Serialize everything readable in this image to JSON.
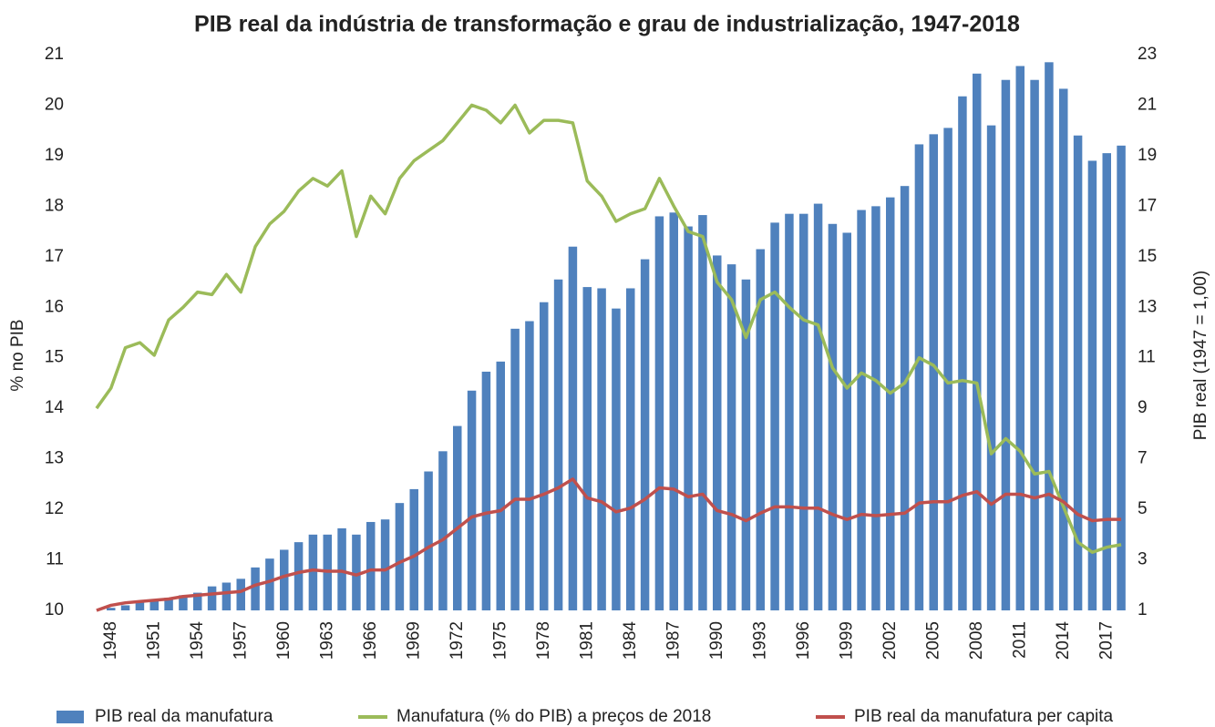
{
  "chart_data": {
    "type": "bar",
    "title": "PIB real da indústria de transformação e grau de industrialização, 1947-2018",
    "y_label": "%  no PIB",
    "y2_label": "PIB real (1947 = 1,00)",
    "categories": [
      null,
      "1948",
      null,
      null,
      "1951",
      null,
      null,
      "1954",
      null,
      null,
      "1957",
      null,
      null,
      "1960",
      null,
      null,
      "1963",
      null,
      null,
      "1966",
      null,
      null,
      "1969",
      null,
      null,
      "1972",
      null,
      null,
      "1975",
      null,
      null,
      "1978",
      null,
      null,
      "1981",
      null,
      null,
      "1984",
      null,
      null,
      "1987",
      null,
      null,
      "1990",
      null,
      null,
      "1993",
      null,
      null,
      "1996",
      null,
      null,
      "1999",
      null,
      null,
      "2002",
      null,
      null,
      "2005",
      null,
      null,
      "2008",
      null,
      null,
      "2011",
      null,
      null,
      "2014",
      null,
      null,
      "2017",
      null
    ],
    "ylim": [
      10,
      21
    ],
    "yticks": [
      10,
      11,
      12,
      13,
      14,
      15,
      16,
      17,
      18,
      19,
      20,
      21
    ],
    "y2lim": [
      1,
      23
    ],
    "y2ticks": [
      1,
      3,
      5,
      7,
      9,
      11,
      13,
      15,
      17,
      19,
      21,
      23
    ],
    "legend": "bottom",
    "series": [
      {
        "name": "PIB real da manufatura",
        "type": "bar",
        "axis": "y2",
        "color": "#4f81bd",
        "values": [
          1.0,
          1.1,
          1.2,
          1.35,
          1.45,
          1.5,
          1.6,
          1.7,
          1.95,
          2.1,
          2.25,
          2.7,
          3.05,
          3.4,
          3.7,
          4.0,
          4.0,
          4.25,
          4.0,
          4.5,
          4.6,
          5.25,
          5.8,
          6.5,
          7.3,
          8.3,
          9.7,
          10.45,
          10.85,
          12.15,
          12.45,
          13.2,
          14.1,
          15.4,
          13.8,
          13.75,
          12.95,
          13.75,
          14.9,
          16.6,
          16.75,
          16.2,
          16.65,
          15.05,
          14.7,
          14.1,
          15.3,
          16.35,
          16.7,
          16.7,
          17.1,
          16.3,
          15.95,
          16.85,
          17.0,
          17.35,
          17.8,
          19.45,
          19.85,
          20.1,
          21.35,
          22.25,
          20.2,
          22.0,
          22.55,
          22.0,
          22.7,
          21.65,
          19.8,
          18.8,
          19.1,
          19.4
        ]
      },
      {
        "name": "Manufatura (% do PIB) a preços de 2018",
        "type": "line",
        "color": "#9bbb59",
        "values": [
          14.0,
          14.4,
          15.2,
          15.3,
          15.05,
          15.75,
          16.0,
          16.3,
          16.25,
          16.65,
          16.3,
          17.2,
          17.65,
          17.9,
          18.3,
          18.55,
          18.4,
          18.7,
          17.4,
          18.2,
          17.85,
          18.55,
          18.9,
          19.1,
          19.3,
          19.65,
          20.0,
          19.9,
          19.65,
          20.0,
          19.45,
          19.7,
          19.7,
          19.65,
          18.5,
          18.2,
          17.7,
          17.85,
          17.95,
          18.55,
          18.0,
          17.5,
          17.4,
          16.5,
          16.15,
          15.4,
          16.15,
          16.3,
          16.0,
          15.75,
          15.65,
          14.8,
          14.4,
          14.7,
          14.55,
          14.3,
          14.5,
          15.0,
          14.85,
          14.5,
          14.55,
          14.5,
          13.1,
          13.4,
          13.15,
          12.7,
          12.75,
          12.05,
          11.35,
          11.15,
          11.25,
          11.3
        ]
      },
      {
        "name": "PIB real da manufatura per capita",
        "type": "line",
        "axis": "y2",
        "color": "#c0504d",
        "values": [
          1.0,
          1.2,
          1.3,
          1.35,
          1.4,
          1.45,
          1.55,
          1.6,
          1.65,
          1.7,
          1.75,
          2.0,
          2.15,
          2.35,
          2.5,
          2.6,
          2.55,
          2.55,
          2.4,
          2.6,
          2.6,
          2.9,
          3.15,
          3.5,
          3.8,
          4.25,
          4.7,
          4.85,
          4.95,
          5.4,
          5.4,
          5.6,
          5.85,
          6.2,
          5.45,
          5.3,
          4.9,
          5.05,
          5.4,
          5.85,
          5.8,
          5.5,
          5.6,
          4.95,
          4.8,
          4.55,
          4.85,
          5.1,
          5.1,
          5.05,
          5.05,
          4.8,
          4.6,
          4.8,
          4.75,
          4.8,
          4.85,
          5.25,
          5.3,
          5.3,
          5.55,
          5.7,
          5.2,
          5.6,
          5.6,
          5.45,
          5.6,
          5.3,
          4.8,
          4.55,
          4.6,
          4.6
        ]
      }
    ]
  }
}
